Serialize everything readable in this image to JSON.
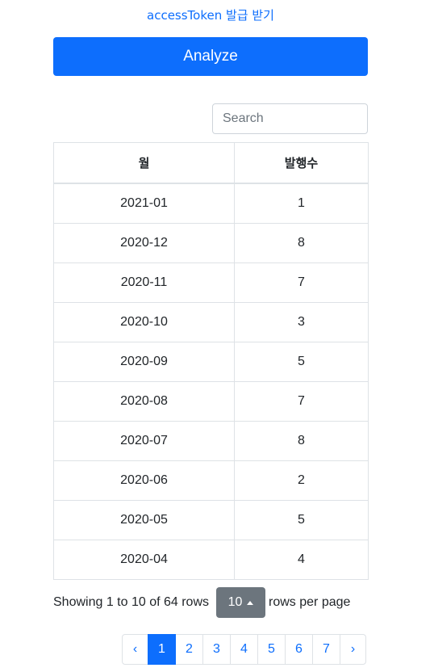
{
  "header": {
    "token_link": "accessToken 발급 받기",
    "analyze_label": "Analyze"
  },
  "search": {
    "placeholder": "Search",
    "value": ""
  },
  "table": {
    "columns": [
      "월",
      "발행수"
    ],
    "rows": [
      [
        "2021-01",
        "1"
      ],
      [
        "2020-12",
        "8"
      ],
      [
        "2020-11",
        "7"
      ],
      [
        "2020-10",
        "3"
      ],
      [
        "2020-09",
        "5"
      ],
      [
        "2020-08",
        "7"
      ],
      [
        "2020-07",
        "8"
      ],
      [
        "2020-06",
        "2"
      ],
      [
        "2020-05",
        "5"
      ],
      [
        "2020-04",
        "4"
      ]
    ]
  },
  "footer": {
    "showing": "Showing 1 to 10 of 64 rows",
    "page_size": "10",
    "rows_per_page": "rows per page"
  },
  "pagination": {
    "prev": "‹",
    "pages": [
      "1",
      "2",
      "3",
      "4",
      "5",
      "6",
      "7"
    ],
    "next": "›",
    "active": "1"
  },
  "colors": {
    "primary": "#0d6efd",
    "secondary": "#6c757d",
    "border": "#dee2e6"
  }
}
